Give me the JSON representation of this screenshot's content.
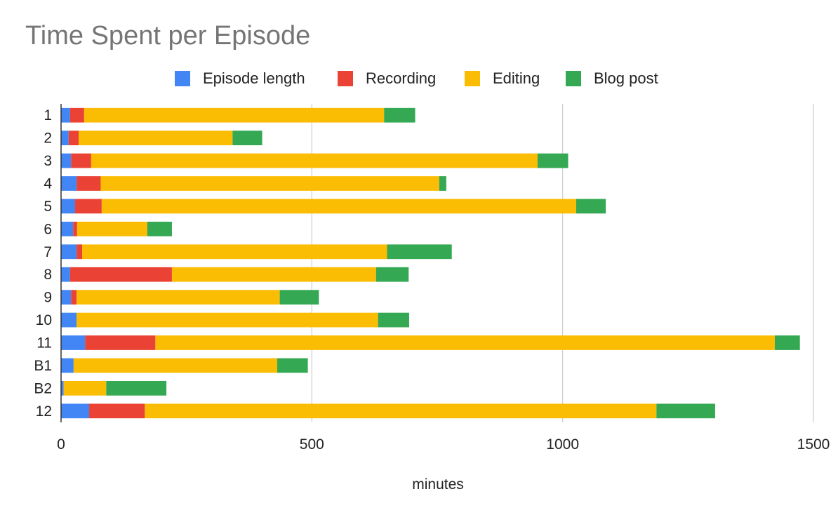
{
  "chart_data": {
    "type": "bar",
    "orientation": "horizontal",
    "stacked": true,
    "title": "Time Spent per Episode",
    "xlabel": "minutes",
    "ylabel": "",
    "xlim": [
      0,
      1500
    ],
    "x_ticks": [
      0,
      500,
      1000,
      1500
    ],
    "grid": "vertical",
    "legend_position": "top",
    "categories": [
      "1",
      "2",
      "3",
      "4",
      "5",
      "6",
      "7",
      "8",
      "9",
      "10",
      "11",
      "B1",
      "B2",
      "12"
    ],
    "series": [
      {
        "name": "Episode length",
        "color": "#4285F4",
        "values": [
          18,
          15,
          20,
          31,
          28,
          24,
          31,
          18,
          20,
          31,
          48,
          25,
          5,
          56
        ]
      },
      {
        "name": "Recording",
        "color": "#EA4335",
        "values": [
          28,
          20,
          40,
          48,
          53,
          8,
          11,
          203,
          11,
          0,
          140,
          0,
          0,
          111
        ]
      },
      {
        "name": "Editing",
        "color": "#FBBC04",
        "values": [
          598,
          307,
          890,
          675,
          946,
          140,
          608,
          407,
          405,
          601,
          1235,
          406,
          85,
          1020
        ]
      },
      {
        "name": "Blog post",
        "color": "#34A853",
        "values": [
          62,
          59,
          61,
          14,
          59,
          49,
          129,
          65,
          78,
          62,
          50,
          61,
          120,
          117
        ]
      }
    ]
  }
}
